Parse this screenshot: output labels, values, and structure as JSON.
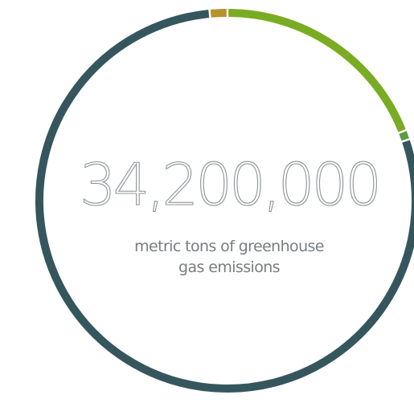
{
  "chart_data": {
    "type": "pie",
    "donut": true,
    "total_value": "34,200,000",
    "caption_line1": "metric tons of greenhouse",
    "caption_line2": "gas emissions",
    "slices": [
      {
        "value": 19.0,
        "color": "#7aac23"
      },
      {
        "value": 0.8,
        "color": "#5d9b45"
      },
      {
        "value": 78.7,
        "color": "#36565e"
      },
      {
        "value": 1.5,
        "color": "#b8922c"
      }
    ]
  }
}
